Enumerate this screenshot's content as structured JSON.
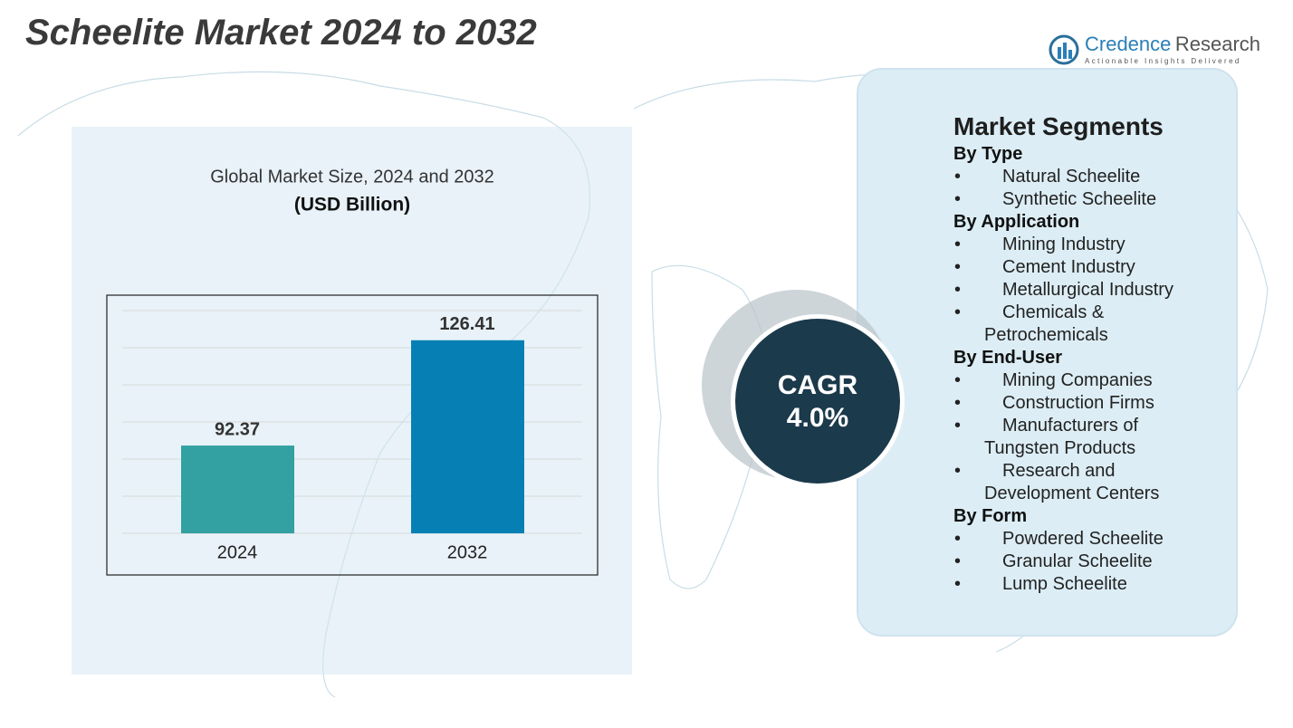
{
  "title": "Scheelite Market 2024 to 2032",
  "logo": {
    "brand_first": "Credence",
    "brand_second": "Research",
    "tagline": "Actionable Insights Delivered"
  },
  "chart_data": {
    "type": "bar",
    "title": "Global Market Size, 2024 and 2032",
    "subtitle": "(USD Billion)",
    "categories": [
      "2024",
      "2032"
    ],
    "values": [
      92.37,
      126.41
    ],
    "colors": [
      "#33a1a1",
      "#0680b4"
    ],
    "ylim": [
      64,
      136
    ],
    "yticks": [
      64,
      76,
      88,
      100,
      112,
      124,
      136
    ],
    "grid": true
  },
  "cagr": {
    "label": "CAGR",
    "value": "4.0%"
  },
  "segments": {
    "title": "Market Segments",
    "groups": [
      {
        "name": "By Type",
        "items": [
          "Natural Scheelite",
          "Synthetic Scheelite"
        ]
      },
      {
        "name": "By Application",
        "items": [
          "Mining Industry",
          "Cement Industry",
          "Metallurgical Industry",
          "Chemicals & Petrochemicals"
        ]
      },
      {
        "name": "By End-User",
        "items": [
          "Mining Companies",
          "Construction Firms",
          "Manufacturers of Tungsten Products",
          "Research and Development Centers"
        ]
      },
      {
        "name": "By Form",
        "items": [
          "Powdered Scheelite",
          "Granular Scheelite",
          "Lump Scheelite"
        ]
      }
    ]
  }
}
